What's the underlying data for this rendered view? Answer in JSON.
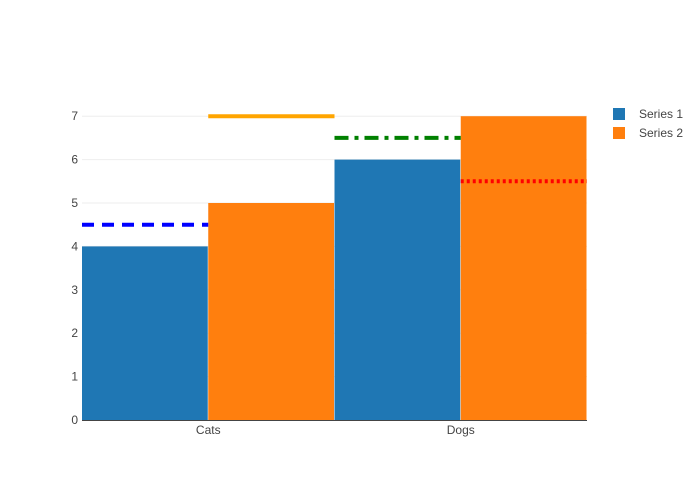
{
  "chart_data": {
    "type": "bar",
    "barmode": "group",
    "categories": [
      "Cats",
      "Dogs"
    ],
    "series": [
      {
        "name": "Series 1",
        "values": [
          4,
          6
        ],
        "color": "#1f77b4"
      },
      {
        "name": "Series 2",
        "values": [
          5,
          7
        ],
        "color": "#ff7f0e"
      }
    ],
    "reference_lines": [
      {
        "category": "Cats",
        "bar": "Series 1",
        "y": 4.5,
        "color": "#0000ff",
        "style": "dash"
      },
      {
        "category": "Cats",
        "bar": "Series 2",
        "y": 7,
        "color": "#ffa500",
        "style": "solid"
      },
      {
        "category": "Dogs",
        "bar": "Series 1",
        "y": 6.5,
        "color": "#008000",
        "style": "dashdot"
      },
      {
        "category": "Dogs",
        "bar": "Series 2",
        "y": 5.5,
        "color": "#ff0000",
        "style": "dot"
      }
    ],
    "y_ticks": [
      0,
      1,
      2,
      3,
      4,
      5,
      6,
      7
    ],
    "ylim": [
      0,
      7
    ],
    "grid": true,
    "legend_position": "top-right",
    "title": "",
    "xlabel": "",
    "ylabel": ""
  }
}
